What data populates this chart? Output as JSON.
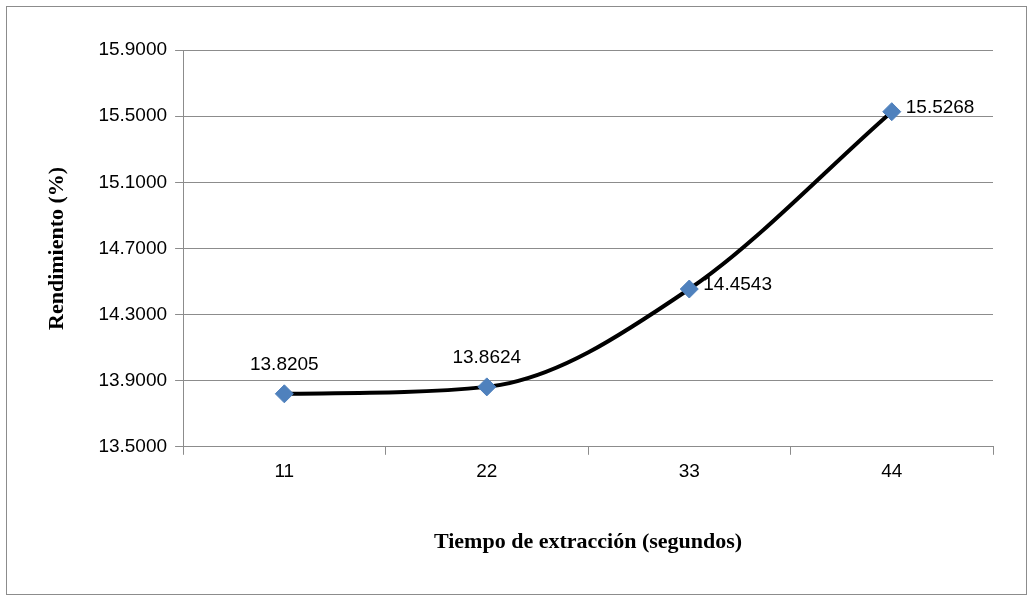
{
  "chart_data": {
    "type": "line",
    "xlabel": "Tiempo de extracción (segundos)",
    "ylabel": "Rendimiento (%)",
    "categories": [
      "11",
      "22",
      "33",
      "44"
    ],
    "values": [
      13.8205,
      13.8624,
      14.4543,
      15.5268
    ],
    "color": "#000000",
    "colors": [
      "#4f81bd",
      "#4f81bd",
      "#4f81bd",
      "#4f81bd"
    ],
    "ylim": [
      13.5,
      15.9
    ],
    "yticks": [
      {
        "value": 13.5,
        "label": "13.5000"
      },
      {
        "value": 13.9,
        "label": "13.9000"
      },
      {
        "value": 14.3,
        "label": "14.3000"
      },
      {
        "value": 14.7,
        "label": "14.7000"
      },
      {
        "value": 15.1,
        "label": "15.1000"
      },
      {
        "value": 15.5,
        "label": "15.5000"
      },
      {
        "value": 15.9,
        "label": "15.9000"
      }
    ],
    "grid": "y",
    "legend": false,
    "marker": "diamond",
    "line_style": "solid",
    "data_labels": true
  }
}
